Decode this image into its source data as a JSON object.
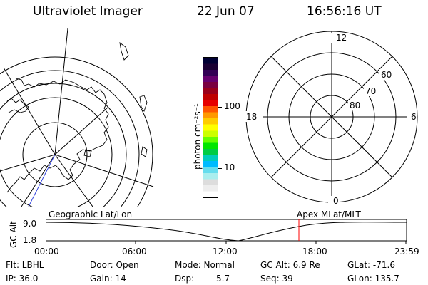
{
  "header": {
    "title": "Ultraviolet Imager",
    "date": "22 Jun 07",
    "time": "16:56:16 UT"
  },
  "left_panel": {
    "map_icon": "polar-coastline-map"
  },
  "colorbar": {
    "unit_label": "photon cm⁻²s⁻¹",
    "tick_100": "100",
    "tick_10": "10",
    "colors": [
      "#000033",
      "#1a0033",
      "#330055",
      "#66006e",
      "#7a0040",
      "#99001a",
      "#bf0000",
      "#e60000",
      "#ff5500",
      "#ff9900",
      "#ffcc00",
      "#ffff00",
      "#ccff00",
      "#66ff00",
      "#00e600",
      "#00cc44",
      "#00ccbb",
      "#00bbff",
      "#66ddee",
      "#aaeeee",
      "#dddddd",
      "#eeeeee",
      "#ffffff"
    ]
  },
  "polar_plot": {
    "label_top": "12",
    "label_bottom": "0",
    "label_left": "18",
    "label_right": "6",
    "label_60": "60",
    "label_70": "70",
    "label_80": "80"
  },
  "timeline": {
    "geo_label": "Geographic Lat/Lon",
    "apex_label": "Apex MLat/MLT",
    "y_axis_title": "GC Alt",
    "y_top": "9.0",
    "y_bottom": "1.8",
    "x_ticks": [
      "00:00",
      "06:00",
      "12:00",
      "18:00",
      "23:59"
    ],
    "marker_color": "#ff0000"
  },
  "info": {
    "row1": {
      "filter": "Flt: LBHL",
      "door": "Door: Open",
      "mode": "Mode: Normal",
      "gc_alt": "GC Alt: 6.9 Re",
      "glat": "GLat: -71.6"
    },
    "row2": {
      "ip": "IP: 36.0",
      "gain": "Gain: 14",
      "dsp_label": "Dsp:",
      "dsp_value": "5.7",
      "seq": "Seq: 39",
      "glon": "GLon: 135.7"
    }
  }
}
